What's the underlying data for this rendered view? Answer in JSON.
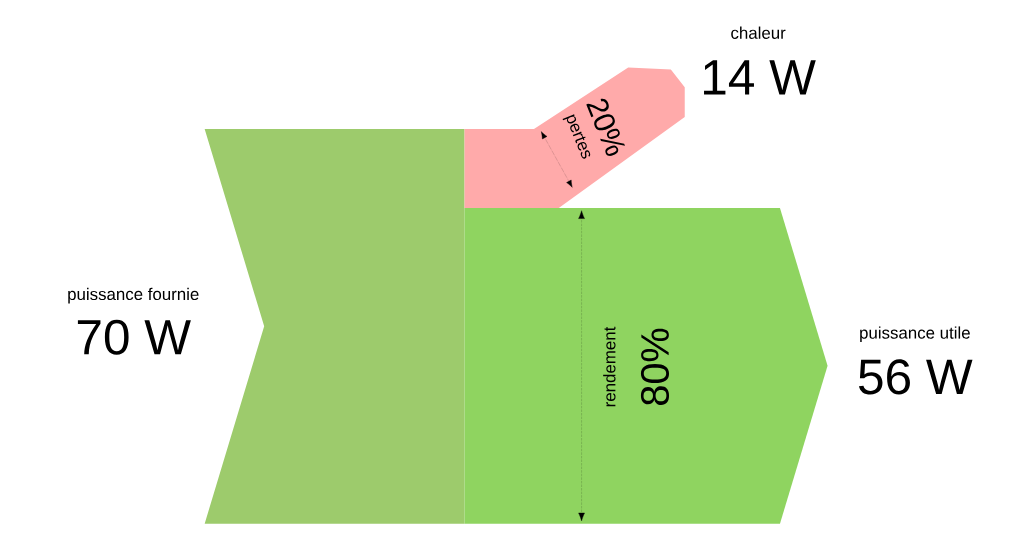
{
  "chart_data": {
    "type": "other",
    "categories": [
      "puissance fournie",
      "puissance utile",
      "chaleur"
    ],
    "values": [
      70,
      56,
      14
    ],
    "value_labels": [
      "70 W",
      "56 W",
      "14 W"
    ],
    "colors": [
      "#9dcb6c",
      "#8fd460",
      "#ffaaaa"
    ],
    "annotations": [
      "rendement",
      "80%",
      "pertes",
      "20%"
    ]
  }
}
